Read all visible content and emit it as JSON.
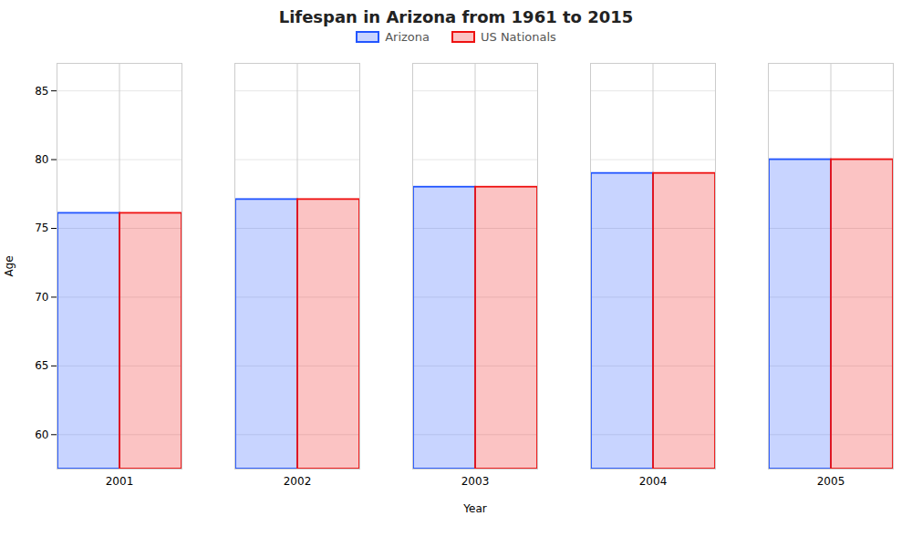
{
  "chart_data": {
    "type": "bar",
    "title": "Lifespan in Arizona from 1961 to 2015",
    "xlabel": "Year",
    "ylabel": "Age",
    "categories": [
      "2001",
      "2002",
      "2003",
      "2004",
      "2005"
    ],
    "series": [
      {
        "name": "Arizona",
        "color": "#2255ff",
        "values": [
          76.1,
          77.1,
          78.0,
          79.0,
          80.0
        ]
      },
      {
        "name": "US Nationals",
        "color": "#ee1111",
        "values": [
          76.1,
          77.1,
          78.0,
          79.0,
          80.0
        ]
      }
    ],
    "ylim": [
      57.5,
      87
    ],
    "yticks": [
      60,
      65,
      70,
      75,
      80,
      85
    ],
    "grid": true,
    "legend": "top"
  }
}
